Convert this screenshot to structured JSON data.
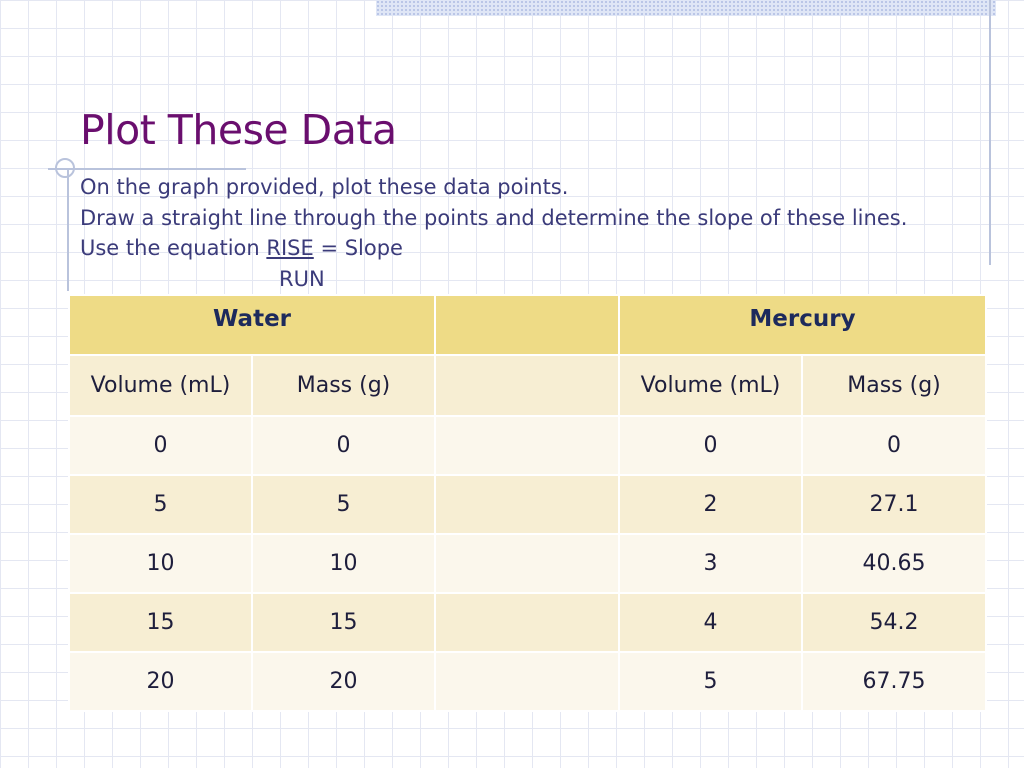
{
  "slide": {
    "title": "Plot These Data",
    "instructions": {
      "line1": "On the graph provided, plot these data points.",
      "line2": "Draw a straight line through the points and determine the slope of these lines.",
      "line3_prefix": "Use the equation ",
      "rise": "RISE",
      "line3_suffix": " = Slope",
      "run": "RUN"
    }
  },
  "table": {
    "water_header": "Water",
    "mercury_header": "Mercury",
    "columns": [
      "Volume (mL)",
      "Mass (g)",
      "",
      "Volume (mL)",
      "Mass (g)"
    ],
    "rows": [
      [
        "0",
        "0",
        "",
        "0",
        "0"
      ],
      [
        "5",
        "5",
        "",
        "2",
        "27.1"
      ],
      [
        "10",
        "10",
        "",
        "3",
        "40.65"
      ],
      [
        "15",
        "15",
        "",
        "4",
        "54.2"
      ],
      [
        "20",
        "20",
        "",
        "5",
        "67.75"
      ]
    ]
  },
  "colors": {
    "title": "#6a0e6e",
    "body_text": "#3b3b7a",
    "header_fill": "#eedb86",
    "band_fill": "#f7eed3"
  }
}
